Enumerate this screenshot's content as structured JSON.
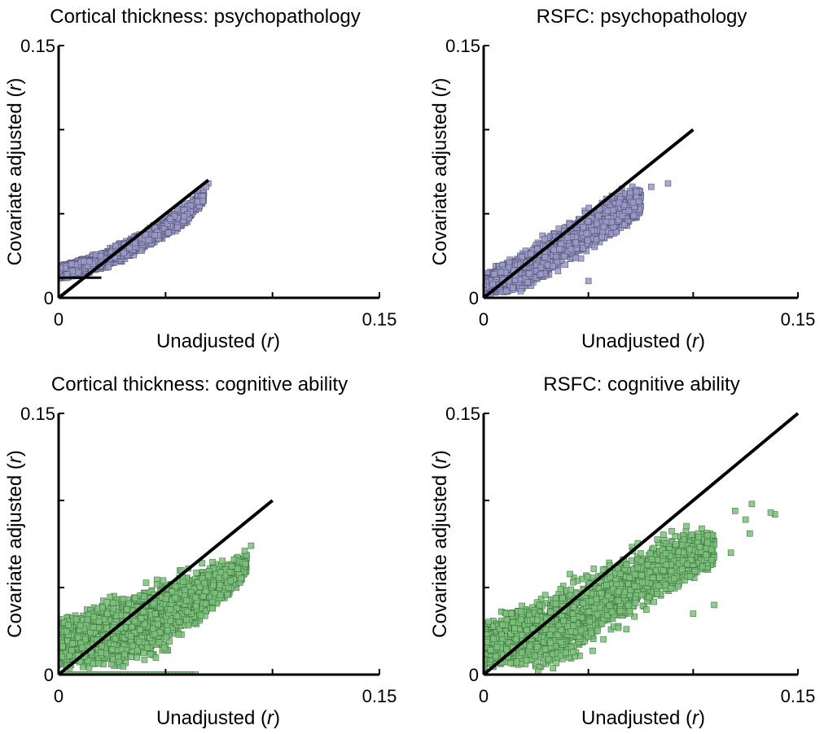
{
  "chart_data": [
    {
      "type": "scatter",
      "title": "Cortical thickness: psychopathology",
      "xlabel": "Unadjusted",
      "xlabel_italic": "r",
      "ylabel": "Covariate adjusted",
      "ylabel_italic": "r",
      "xlim": [
        0,
        0.15
      ],
      "ylim": [
        0,
        0.15
      ],
      "xtick_labels": [
        "0",
        "0.15"
      ],
      "ytick_labels": [
        "0",
        "0.15"
      ],
      "reference_line": {
        "from": [
          0,
          0
        ],
        "to": [
          0.07,
          0.07
        ]
      },
      "floor_line": {
        "y": 0.012,
        "x_to": 0.02
      },
      "point_color": "#9b9bc8",
      "point_edge_color": "#55557a",
      "cloud": [
        [
          0.0,
          0.01,
          0.02
        ],
        [
          0.01,
          0.012,
          0.024
        ],
        [
          0.02,
          0.015,
          0.028
        ],
        [
          0.03,
          0.021,
          0.034
        ],
        [
          0.04,
          0.028,
          0.041
        ],
        [
          0.05,
          0.035,
          0.049
        ],
        [
          0.06,
          0.043,
          0.058
        ],
        [
          0.068,
          0.055,
          0.066
        ]
      ],
      "outliers": [
        [
          0.07,
          0.068
        ],
        [
          0.069,
          0.066
        ]
      ]
    },
    {
      "type": "scatter",
      "title": "RSFC: psychopathology",
      "xlabel": "Unadjusted",
      "xlabel_italic": "r",
      "ylabel": "Covariate adjusted",
      "ylabel_italic": "r",
      "xlim": [
        0,
        0.15
      ],
      "ylim": [
        0,
        0.15
      ],
      "xtick_labels": [
        "0",
        "0.15"
      ],
      "ytick_labels": [
        "0",
        "0.15"
      ],
      "reference_line": {
        "from": [
          0,
          0
        ],
        "to": [
          0.1,
          0.1
        ]
      },
      "point_color": "#9b9bc8",
      "point_edge_color": "#55557a",
      "cloud": [
        [
          0.0,
          0.0,
          0.014
        ],
        [
          0.01,
          0.0,
          0.023
        ],
        [
          0.02,
          0.004,
          0.031
        ],
        [
          0.03,
          0.011,
          0.039
        ],
        [
          0.04,
          0.018,
          0.047
        ],
        [
          0.05,
          0.025,
          0.055
        ],
        [
          0.06,
          0.032,
          0.063
        ],
        [
          0.07,
          0.04,
          0.069
        ],
        [
          0.075,
          0.047,
          0.068
        ]
      ],
      "outliers": [
        [
          0.088,
          0.068
        ],
        [
          0.08,
          0.066
        ],
        [
          0.05,
          0.01
        ]
      ]
    },
    {
      "type": "scatter",
      "title": "Cortical thickness: cognitive ability",
      "xlabel": "Unadjusted",
      "xlabel_italic": "r",
      "ylabel": "Covariate adjusted",
      "ylabel_italic": "r",
      "xlim": [
        0,
        0.15
      ],
      "ylim": [
        0,
        0.15
      ],
      "xtick_labels": [
        "0",
        "0.15"
      ],
      "ytick_labels": [
        "0",
        "0.15"
      ],
      "reference_line": {
        "from": [
          0,
          0
        ],
        "to": [
          0.1,
          0.1
        ]
      },
      "floor_points": {
        "y": 0.0,
        "x_to": 0.065
      },
      "point_color": "#7fbf7f",
      "point_edge_color": "#3d7a3d",
      "cloud": [
        [
          0.0,
          0.0,
          0.035
        ],
        [
          0.01,
          0.0,
          0.04
        ],
        [
          0.02,
          0.0,
          0.045
        ],
        [
          0.03,
          0.0,
          0.05
        ],
        [
          0.04,
          0.002,
          0.057
        ],
        [
          0.05,
          0.01,
          0.062
        ],
        [
          0.06,
          0.02,
          0.066
        ],
        [
          0.07,
          0.03,
          0.068
        ],
        [
          0.08,
          0.042,
          0.068
        ],
        [
          0.088,
          0.055,
          0.072
        ]
      ],
      "outliers": [
        [
          0.09,
          0.074
        ],
        [
          0.087,
          0.071
        ],
        [
          0.082,
          0.066
        ]
      ]
    },
    {
      "type": "scatter",
      "title": "RSFC: cognitive ability",
      "xlabel": "Unadjusted",
      "xlabel_italic": "r",
      "ylabel": "Covariate adjusted",
      "ylabel_italic": "r",
      "xlim": [
        0,
        0.15
      ],
      "ylim": [
        0,
        0.15
      ],
      "xtick_labels": [
        "0",
        "0.15"
      ],
      "ytick_labels": [
        "0",
        "0.15"
      ],
      "reference_line": {
        "from": [
          0,
          0
        ],
        "to": [
          0.15,
          0.15
        ]
      },
      "point_color": "#7fbf7f",
      "point_edge_color": "#3d7a3d",
      "cloud": [
        [
          0.0,
          0.0,
          0.03
        ],
        [
          0.01,
          0.0,
          0.038
        ],
        [
          0.02,
          0.0,
          0.045
        ],
        [
          0.03,
          0.0,
          0.052
        ],
        [
          0.04,
          0.003,
          0.058
        ],
        [
          0.05,
          0.01,
          0.064
        ],
        [
          0.06,
          0.018,
          0.07
        ],
        [
          0.07,
          0.026,
          0.076
        ],
        [
          0.08,
          0.034,
          0.082
        ],
        [
          0.09,
          0.042,
          0.087
        ],
        [
          0.1,
          0.05,
          0.088
        ],
        [
          0.11,
          0.058,
          0.086
        ]
      ],
      "outliers": [
        [
          0.139,
          0.092
        ],
        [
          0.137,
          0.093
        ],
        [
          0.128,
          0.098
        ],
        [
          0.125,
          0.089
        ],
        [
          0.127,
          0.081
        ],
        [
          0.12,
          0.094
        ],
        [
          0.11,
          0.04
        ],
        [
          0.1,
          0.035
        ],
        [
          0.118,
          0.07
        ]
      ]
    }
  ]
}
